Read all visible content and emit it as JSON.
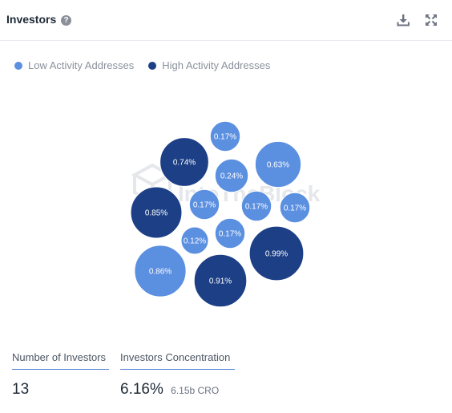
{
  "header": {
    "title": "Investors",
    "help_icon": "question-circle-icon",
    "download_icon": "download-icon",
    "expand_icon": "expand-arrows-icon"
  },
  "colors": {
    "low_activity": "#5b8fe0",
    "high_activity": "#1c3f86",
    "watermark": "#e5e7eb"
  },
  "watermark": {
    "text": "IntoTheBlock"
  },
  "chart_data": {
    "type": "bubble",
    "legend_position": "top-left",
    "legend": [
      {
        "name": "Low Activity Addresses",
        "color": "#5b8fe0"
      },
      {
        "name": "High Activity Addresses",
        "color": "#1c3f86"
      }
    ],
    "bubbles": [
      {
        "label": "0.17%",
        "value": 0.17,
        "series": "Low Activity Addresses"
      },
      {
        "label": "0.74%",
        "value": 0.74,
        "series": "High Activity Addresses"
      },
      {
        "label": "0.24%",
        "value": 0.24,
        "series": "Low Activity Addresses"
      },
      {
        "label": "0.63%",
        "value": 0.63,
        "series": "Low Activity Addresses"
      },
      {
        "label": "0.85%",
        "value": 0.85,
        "series": "High Activity Addresses"
      },
      {
        "label": "0.17%",
        "value": 0.17,
        "series": "Low Activity Addresses"
      },
      {
        "label": "0.17%",
        "value": 0.17,
        "series": "Low Activity Addresses"
      },
      {
        "label": "0.17%",
        "value": 0.17,
        "series": "Low Activity Addresses"
      },
      {
        "label": "0.12%",
        "value": 0.12,
        "series": "Low Activity Addresses"
      },
      {
        "label": "0.17%",
        "value": 0.17,
        "series": "Low Activity Addresses"
      },
      {
        "label": "0.99%",
        "value": 0.99,
        "series": "High Activity Addresses"
      },
      {
        "label": "0.86%",
        "value": 0.86,
        "series": "Low Activity Addresses"
      },
      {
        "label": "0.91%",
        "value": 0.91,
        "series": "High Activity Addresses"
      }
    ]
  },
  "stats": {
    "investors_label": "Number of Investors",
    "investors_value": "13",
    "concentration_label": "Investors Concentration",
    "concentration_value": "6.16%",
    "concentration_sub": "6.15b CRO"
  }
}
